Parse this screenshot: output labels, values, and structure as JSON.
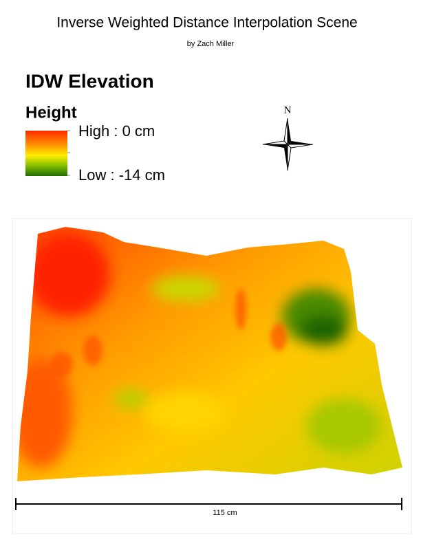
{
  "header": {
    "title": "Inverse Weighted Distance Interpolation Scene",
    "author": "by Zach Miller"
  },
  "legend": {
    "title": "IDW Elevation",
    "field": "Height",
    "high": "High : 0 cm",
    "low": "Low : -14 cm"
  },
  "north_arrow": {
    "label": "N"
  },
  "scale_bar": {
    "label": "115 cm"
  }
}
